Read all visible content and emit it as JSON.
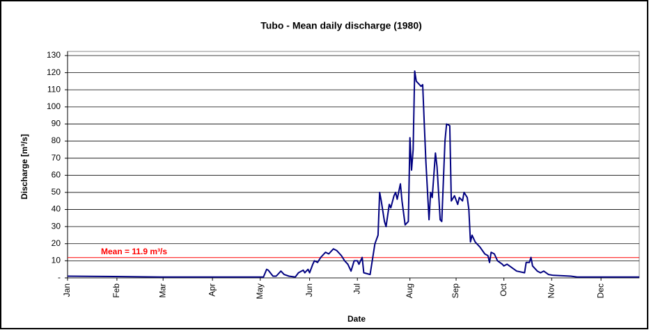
{
  "chart_data": {
    "type": "line",
    "title": "Tubo - Mean daily discharge (1980)",
    "x_label": "Date",
    "y_label": "Discharge [m³/s]",
    "annotation": "Mean = 11.9 m³/s",
    "mean": 11.9,
    "mean_color": "#ff0000",
    "xlim": [
      1,
      360
    ],
    "xticks": [
      {
        "value": 1,
        "label": "Jan"
      },
      {
        "value": 32,
        "label": "Feb"
      },
      {
        "value": 61,
        "label": "Mar"
      },
      {
        "value": 92,
        "label": "Apr"
      },
      {
        "value": 122,
        "label": "May"
      },
      {
        "value": 153,
        "label": "Jun"
      },
      {
        "value": 183,
        "label": "Jul"
      },
      {
        "value": 216,
        "label": "Aug"
      },
      {
        "value": 245,
        "label": "Sep"
      },
      {
        "value": 275,
        "label": "Oct"
      },
      {
        "value": 305,
        "label": "Nov"
      },
      {
        "value": 336,
        "label": "Dec"
      }
    ],
    "ylim": [
      0,
      130
    ],
    "yticks": [
      {
        "value": 0,
        "label": "-"
      },
      10,
      20,
      30,
      40,
      50,
      60,
      70,
      80,
      90,
      100,
      110,
      120,
      130
    ],
    "grid": true,
    "x": [
      1,
      30,
      60,
      90,
      120,
      124,
      126,
      127,
      130,
      132,
      135,
      137,
      140,
      144,
      146,
      149,
      150,
      152,
      153,
      155,
      156,
      158,
      160,
      161,
      163,
      165,
      167,
      168,
      170,
      173,
      175,
      177,
      179,
      181,
      183,
      184,
      186,
      187,
      191,
      194,
      196,
      197,
      198,
      200,
      201,
      203,
      204,
      206,
      207,
      208,
      210,
      211,
      213,
      215,
      216,
      217,
      218,
      219,
      220,
      222,
      223,
      224,
      225,
      226,
      228,
      229,
      230,
      232,
      233,
      234,
      235,
      236,
      238,
      239,
      241,
      242,
      244,
      246,
      247,
      249,
      250,
      252,
      253,
      254,
      255,
      257,
      260,
      263,
      265,
      266,
      267,
      269,
      271,
      274,
      275,
      277,
      280,
      283,
      288,
      289,
      291,
      292,
      293,
      296,
      298,
      300,
      303,
      306,
      317,
      321,
      360
    ],
    "series": [
      {
        "color": "#000080",
        "values": [
          1,
          0.8,
          0.5,
          0.5,
          0.5,
          0.5,
          5,
          4.5,
          1,
          1,
          4,
          2,
          1,
          0.5,
          3,
          4.5,
          3,
          5,
          3,
          8,
          10,
          9,
          12,
          13,
          15,
          14,
          16,
          17,
          16,
          13,
          10,
          8,
          4,
          10,
          10,
          8,
          12,
          3,
          2,
          20,
          25,
          50,
          45,
          33,
          30,
          43,
          41,
          48,
          50,
          46,
          55,
          45,
          31,
          33,
          82,
          63,
          75,
          121,
          115,
          113,
          112,
          113,
          90,
          68,
          34,
          50,
          47,
          73,
          65,
          50,
          34,
          33,
          80,
          90,
          89,
          45,
          48,
          43,
          47,
          45,
          50,
          47,
          40,
          21,
          25,
          21,
          18,
          14,
          13,
          9,
          15,
          14,
          10,
          8,
          7,
          8,
          6,
          4,
          3,
          9,
          9,
          12,
          7,
          4,
          3,
          4,
          2,
          1.5,
          1,
          0.5,
          0.5
        ]
      }
    ]
  }
}
